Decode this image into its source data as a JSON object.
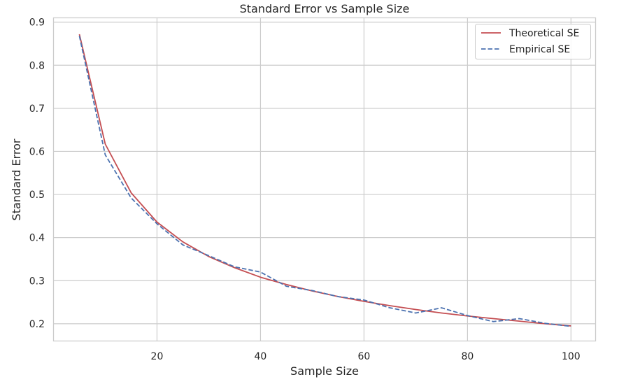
{
  "chart_data": {
    "type": "line",
    "title": "Standard Error vs Sample Size",
    "xlabel": "Sample Size",
    "ylabel": "Standard Error",
    "xlim": [
      0,
      104.75
    ],
    "ylim": [
      0.16,
      0.91
    ],
    "xticks": [
      20,
      40,
      60,
      80,
      100
    ],
    "yticks": [
      0.2,
      0.3,
      0.4,
      0.5,
      0.6,
      0.7,
      0.8,
      0.9
    ],
    "grid": true,
    "legend_position": "top-right",
    "x": [
      5,
      10,
      15,
      20,
      25,
      30,
      35,
      40,
      45,
      50,
      55,
      60,
      65,
      70,
      75,
      80,
      85,
      90,
      95,
      100
    ],
    "series": [
      {
        "name": "Theoretical SE",
        "color": "#c44e52",
        "style": "solid",
        "values": [
          0.872,
          0.617,
          0.504,
          0.436,
          0.39,
          0.356,
          0.33,
          0.308,
          0.291,
          0.276,
          0.263,
          0.252,
          0.242,
          0.233,
          0.225,
          0.218,
          0.212,
          0.206,
          0.2,
          0.195
        ]
      },
      {
        "name": "Empirical SE",
        "color": "#4c72b0",
        "style": "dashed",
        "values": [
          0.868,
          0.592,
          0.492,
          0.432,
          0.383,
          0.358,
          0.332,
          0.32,
          0.287,
          0.277,
          0.263,
          0.255,
          0.237,
          0.225,
          0.237,
          0.219,
          0.205,
          0.212,
          0.201,
          0.194
        ]
      }
    ]
  }
}
